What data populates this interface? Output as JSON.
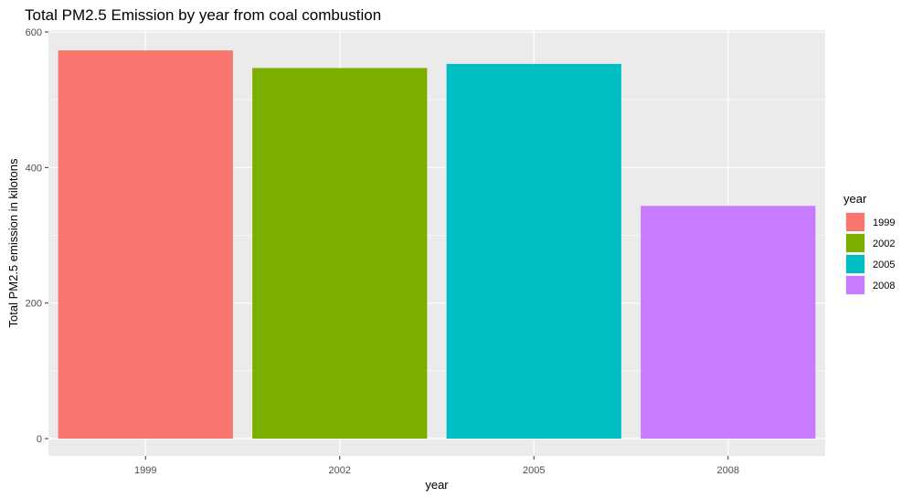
{
  "chart_data": {
    "type": "bar",
    "title": "Total PM2.5 Emission by year from coal combustion",
    "xlabel": "year",
    "ylabel": "Total PM2.5 emission in kilotons",
    "categories": [
      "1999",
      "2002",
      "2005",
      "2008"
    ],
    "values": [
      572.8,
      546.8,
      552.9,
      343.4
    ],
    "colors": [
      "#F8766D",
      "#7CAE00",
      "#00BFC4",
      "#C77CFF"
    ],
    "ylim": [
      0,
      600
    ],
    "yticks": [
      0,
      200,
      400,
      600
    ],
    "ytick_labels": [
      "0",
      "200",
      "400",
      "600"
    ],
    "grid": true,
    "panel_background": "#EBEBEB",
    "legend": {
      "title": "year",
      "position": "right",
      "entries": [
        "1999",
        "2002",
        "2005",
        "2008"
      ]
    }
  }
}
